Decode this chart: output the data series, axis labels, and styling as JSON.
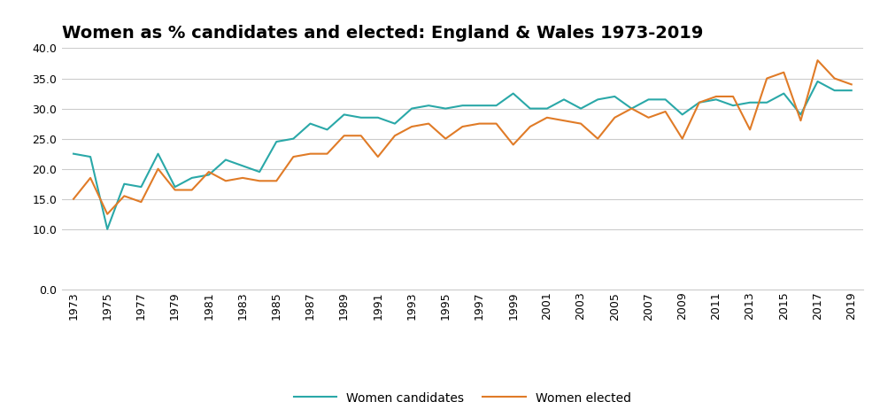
{
  "title": "Women as % candidates and elected: England & Wales 1973-2019",
  "years": [
    1973,
    1974,
    1975,
    1976,
    1977,
    1978,
    1979,
    1980,
    1981,
    1982,
    1983,
    1984,
    1985,
    1986,
    1987,
    1988,
    1989,
    1990,
    1991,
    1992,
    1993,
    1994,
    1995,
    1996,
    1997,
    1998,
    1999,
    2000,
    2001,
    2002,
    2003,
    2004,
    2005,
    2006,
    2007,
    2008,
    2009,
    2010,
    2011,
    2012,
    2013,
    2014,
    2015,
    2016,
    2017,
    2018,
    2019
  ],
  "candidates": [
    22.5,
    22.0,
    10.0,
    17.5,
    17.0,
    22.5,
    17.0,
    18.5,
    19.0,
    21.5,
    20.5,
    19.5,
    24.5,
    25.0,
    27.5,
    26.5,
    29.0,
    28.5,
    28.5,
    27.5,
    30.0,
    30.5,
    30.0,
    30.5,
    30.5,
    30.5,
    32.5,
    30.0,
    30.0,
    31.5,
    30.0,
    31.5,
    32.0,
    30.0,
    31.5,
    31.5,
    29.0,
    31.0,
    31.5,
    30.5,
    31.0,
    31.0,
    32.5,
    29.0,
    34.5,
    33.0,
    33.0
  ],
  "elected": [
    15.0,
    18.5,
    12.5,
    15.5,
    14.5,
    20.0,
    16.5,
    16.5,
    19.5,
    18.0,
    18.5,
    18.0,
    18.0,
    22.0,
    22.5,
    22.5,
    25.5,
    25.5,
    22.0,
    25.5,
    27.0,
    27.5,
    25.0,
    27.0,
    27.5,
    27.5,
    24.0,
    27.0,
    28.5,
    28.0,
    27.5,
    25.0,
    28.5,
    30.0,
    28.5,
    29.5,
    25.0,
    31.0,
    32.0,
    32.0,
    26.5,
    35.0,
    36.0,
    28.0,
    38.0,
    35.0,
    34.0
  ],
  "candidates_color": "#2aa8a8",
  "elected_color": "#e07b27",
  "ylim": [
    0,
    40
  ],
  "yticks": [
    0.0,
    10.0,
    15.0,
    20.0,
    25.0,
    30.0,
    35.0,
    40.0
  ],
  "xtick_years": [
    1973,
    1975,
    1977,
    1979,
    1981,
    1983,
    1985,
    1987,
    1989,
    1991,
    1993,
    1995,
    1997,
    1999,
    2001,
    2003,
    2005,
    2007,
    2009,
    2011,
    2013,
    2015,
    2017,
    2019
  ],
  "legend_candidates": "Women candidates",
  "legend_elected": "Women elected",
  "background_color": "#ffffff",
  "grid_color": "#cccccc",
  "title_fontsize": 14,
  "tick_fontsize": 9,
  "legend_fontsize": 10
}
